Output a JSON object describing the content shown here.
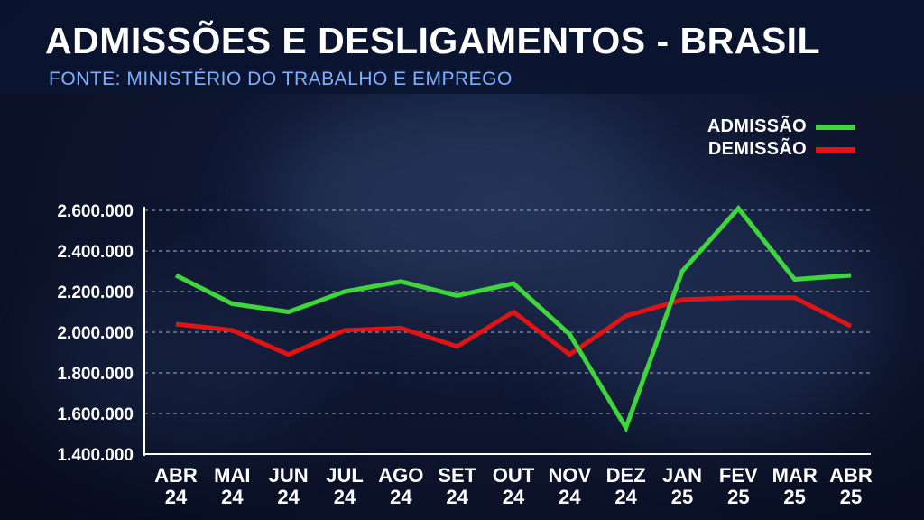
{
  "header": {
    "title": "ADMISSÕES E DESLIGAMENTOS - BRASIL",
    "subtitle": "FONTE: MINISTÉRIO DO TRABALHO E EMPREGO"
  },
  "chart_data": {
    "type": "line",
    "categories": [
      [
        "ABR",
        "24"
      ],
      [
        "MAI",
        "24"
      ],
      [
        "JUN",
        "24"
      ],
      [
        "JUL",
        "24"
      ],
      [
        "AGO",
        "24"
      ],
      [
        "SET",
        "24"
      ],
      [
        "OUT",
        "24"
      ],
      [
        "NOV",
        "24"
      ],
      [
        "DEZ",
        "24"
      ],
      [
        "JAN",
        "25"
      ],
      [
        "FEV",
        "25"
      ],
      [
        "MAR",
        "25"
      ],
      [
        "ABR",
        "25"
      ]
    ],
    "series": [
      {
        "name": "ADMISSÃO",
        "color": "#3ed63a",
        "values": [
          2280000,
          2140000,
          2100000,
          2200000,
          2250000,
          2180000,
          2240000,
          1990000,
          1530000,
          2300000,
          2610000,
          2260000,
          2280000
        ]
      },
      {
        "name": "DEMISSÃO",
        "color": "#e01414",
        "values": [
          2040000,
          2010000,
          1890000,
          2010000,
          2020000,
          1930000,
          2100000,
          1890000,
          2080000,
          2160000,
          2170000,
          2170000,
          2030000
        ]
      }
    ],
    "ylim": [
      1400000,
      2600000
    ],
    "yticks": [
      1400000,
      1600000,
      1800000,
      2000000,
      2200000,
      2400000,
      2600000
    ],
    "ytick_labels": [
      "1.400.000",
      "1.600.000",
      "1.800.000",
      "2.000.000",
      "2.200.000",
      "2.400.000",
      "2.600.000"
    ],
    "grid": true,
    "legend_position": "top-right"
  }
}
